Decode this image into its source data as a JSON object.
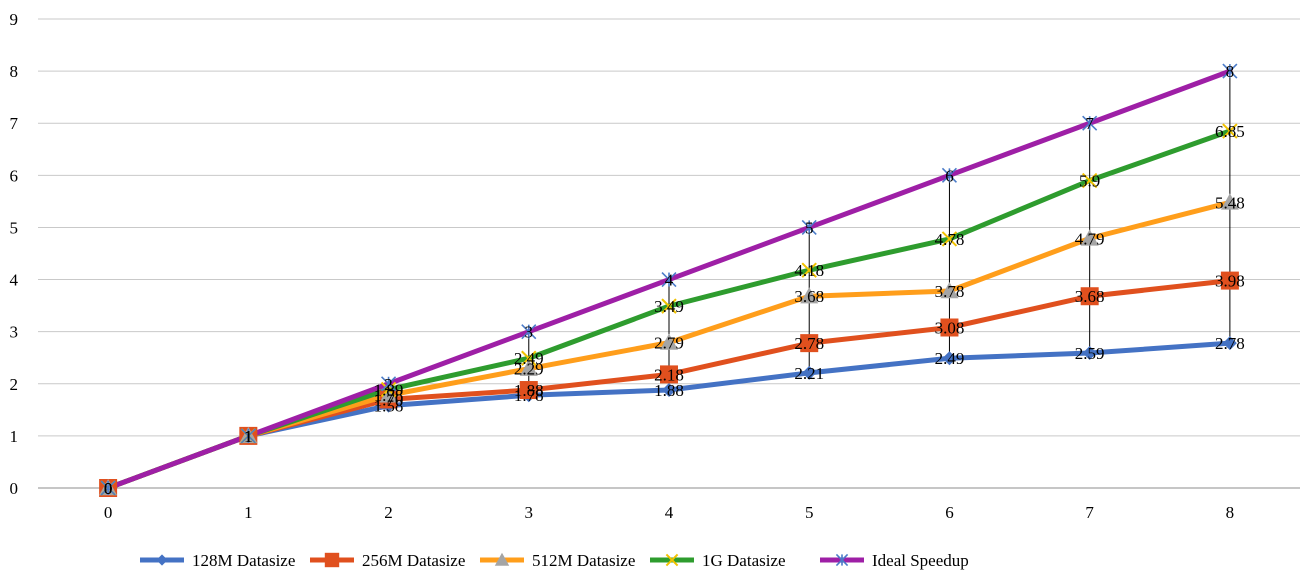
{
  "chart_data": {
    "type": "line",
    "x": [
      0,
      1,
      2,
      3,
      4,
      5,
      6,
      7,
      8
    ],
    "xlim": [
      0,
      8
    ],
    "ylim": [
      0,
      9
    ],
    "yticks": [
      0,
      1,
      2,
      3,
      4,
      5,
      6,
      7,
      8,
      9
    ],
    "xlabel": "",
    "ylabel": "",
    "title": "",
    "grid": "horizontal",
    "legend_position": "bottom",
    "high_low_lines": true,
    "series": [
      {
        "name": "128M Datasize",
        "color": "#4472C4",
        "marker": "diamond",
        "values": [
          0,
          1,
          1.58,
          1.78,
          1.88,
          2.21,
          2.49,
          2.59,
          2.78
        ],
        "labels": [
          "0",
          "1",
          "1.58",
          "1.78",
          "1.88",
          "2.21",
          "2.49",
          "2.59",
          "2.78"
        ]
      },
      {
        "name": "256M Datasize",
        "color": "#E0501E",
        "marker": "square",
        "values": [
          0,
          1,
          1.7,
          1.88,
          2.18,
          2.78,
          3.08,
          3.68,
          3.98
        ],
        "labels": [
          "0",
          "1",
          "1.70",
          "1.88",
          "2.18",
          "2.78",
          "3.08",
          "3.68",
          "3.98"
        ]
      },
      {
        "name": "512M Datasize",
        "color": "#FF9E1B",
        "marker": "triangle",
        "values": [
          0,
          1,
          1.78,
          2.29,
          2.79,
          3.68,
          3.78,
          4.79,
          5.48
        ],
        "labels": [
          "0",
          "1",
          "1.78",
          "2.29",
          "2.79",
          "3.68",
          "3.78",
          "4.79",
          "5.48"
        ]
      },
      {
        "name": "1G Datasize",
        "color": "#2E9C2E",
        "marker": "x",
        "values": [
          0,
          1,
          1.89,
          2.49,
          3.49,
          4.18,
          4.78,
          5.9,
          6.85
        ],
        "labels": [
          "0",
          "1",
          "1.89",
          "2.49",
          "3.49",
          "4.18",
          "4.78",
          "5.9",
          "6.85"
        ]
      },
      {
        "name": "Ideal Speedup",
        "color": "#9E1FA6",
        "marker": "asterisk",
        "values": [
          0,
          1,
          2,
          3,
          4,
          5,
          6,
          7,
          8
        ],
        "labels": [
          "0",
          "1",
          "2",
          "3",
          "4",
          "5",
          "6",
          "7",
          "8"
        ]
      }
    ]
  }
}
